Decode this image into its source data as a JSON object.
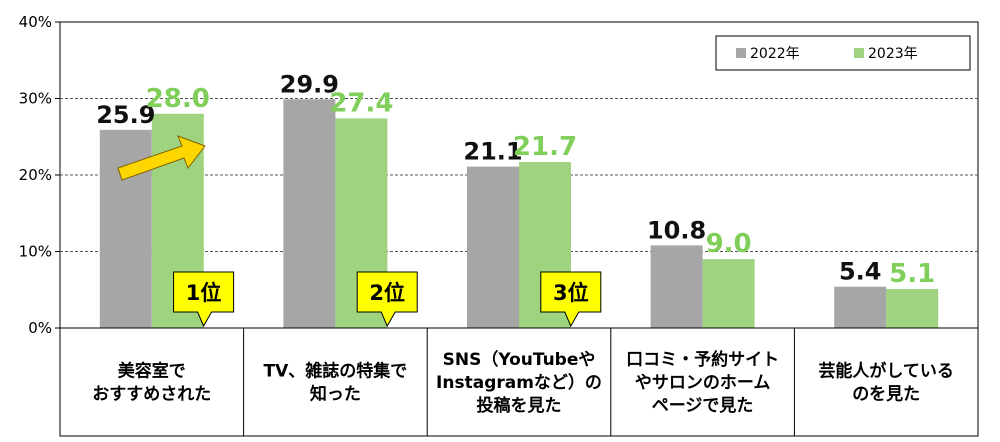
{
  "chart_data": {
    "type": "bar",
    "categories": [
      [
        "美容室で",
        "おすすめされた"
      ],
      [
        "TV、雑誌の特集で",
        "知った"
      ],
      [
        "SNS（YouTubeや",
        "Instagramなど）の",
        "投稿を見た"
      ],
      [
        "口コミ・予約サイト",
        "やサロンのホーム",
        "ページで見た"
      ],
      [
        "芸能人がしている",
        "のを見た"
      ]
    ],
    "series": [
      {
        "name": "2022年",
        "values": [
          25.9,
          29.9,
          21.1,
          10.8,
          5.4
        ],
        "labels": [
          "25.9",
          "29.9",
          "21.1",
          "10.8",
          "5.4"
        ]
      },
      {
        "name": "2023年",
        "values": [
          28.0,
          27.4,
          21.7,
          9.0,
          5.1
        ],
        "labels": [
          "28.0",
          "27.4",
          "21.7",
          "9.0",
          "5.1"
        ]
      }
    ],
    "yticks": [
      "0%",
      "10%",
      "20%",
      "30%",
      "40%"
    ],
    "ylim": [
      0,
      40
    ],
    "grid": "dashed horizontal",
    "legend_position": "top-right",
    "ranks": [
      "1位",
      "2位",
      "3位"
    ],
    "colors": {
      "2022": "#a6a6a6",
      "2023": "#9fd37f",
      "label2023": "#7fcf5a",
      "rank_box": "#ffff00",
      "arrow": "#ffd700"
    }
  }
}
